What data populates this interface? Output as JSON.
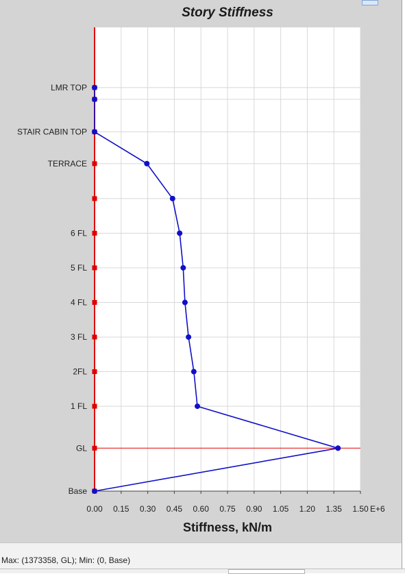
{
  "chart_data": {
    "type": "line",
    "title": "Story Stiffness",
    "xlabel": "Stiffness, kN/m",
    "x_multiplier_label": "E+6",
    "xlim": [
      0,
      1.5
    ],
    "x_ticks": [
      "0.00",
      "0.15",
      "0.30",
      "0.45",
      "0.60",
      "0.75",
      "0.90",
      "1.05",
      "1.20",
      "1.35",
      "1.50"
    ],
    "stories": [
      "Base",
      "GL",
      "1 FL",
      "2FL",
      "3 FL",
      "4 FL",
      "5 FL",
      "6 FL",
      "",
      "TERRACE",
      "STAIR CABIN TOP",
      "",
      "LMR TOP"
    ],
    "elevation_index": [
      0,
      1.232,
      2.434,
      3.427,
      4.419,
      5.412,
      6.405,
      7.397,
      8.39,
      9.393,
      10.305,
      11.238,
      11.574
    ],
    "series": [
      {
        "x": [
          0,
          1.373358,
          0.58,
          0.56,
          0.53,
          0.51,
          0.5,
          0.48,
          0.44,
          0.295,
          0,
          0,
          0
        ]
      }
    ],
    "reference_line_story": "GL",
    "grid": true,
    "series_color": "#1010c8",
    "axis_color": "#e00000"
  },
  "status": {
    "text": "Max: (1373358, GL);   Min: (0, Base)"
  }
}
